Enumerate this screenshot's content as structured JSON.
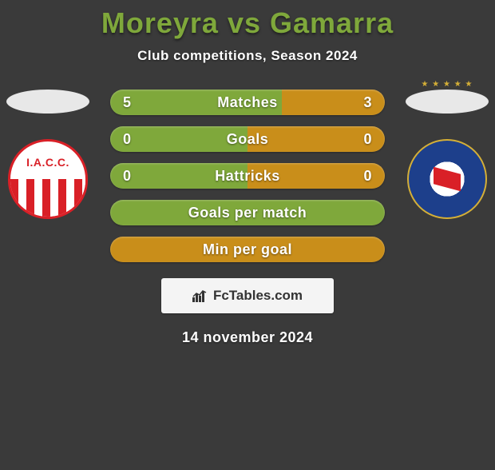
{
  "title": {
    "text": "Moreyra vs Gamarra",
    "color": "#7fa83b",
    "fontsize": 36
  },
  "subtitle": {
    "text": "Club competitions, Season 2024",
    "fontsize": 17
  },
  "date": "14 november 2024",
  "brand": "FcTables.com",
  "colors": {
    "background": "#3a3a3a",
    "left_team": "#7fa83b",
    "right_team": "#c98e1a",
    "ellipse": "#e8e8e8"
  },
  "left": {
    "player": "Moreyra",
    "team_badge": "instituto-cordoba",
    "badge_text": "I.A.C.C.",
    "ellipse_color": "#e8e8e8"
  },
  "right": {
    "player": "Gamarra",
    "team_badge": "argentinos-juniors",
    "ellipse_color": "#e8e8e8"
  },
  "rows": [
    {
      "label": "Matches",
      "left": "5",
      "right": "3",
      "left_pct": 62.5,
      "fill": "split"
    },
    {
      "label": "Goals",
      "left": "0",
      "right": "0",
      "left_pct": 50,
      "fill": "split"
    },
    {
      "label": "Hattricks",
      "left": "0",
      "right": "0",
      "left_pct": 50,
      "fill": "split"
    },
    {
      "label": "Goals per match",
      "left": "",
      "right": "",
      "left_pct": 100,
      "fill": "left"
    },
    {
      "label": "Min per goal",
      "left": "",
      "right": "",
      "left_pct": 0,
      "fill": "right"
    }
  ],
  "bar_style": {
    "height": 32,
    "radius": 16,
    "gap": 14,
    "font_size": 18,
    "text_color": "#ffffff"
  }
}
